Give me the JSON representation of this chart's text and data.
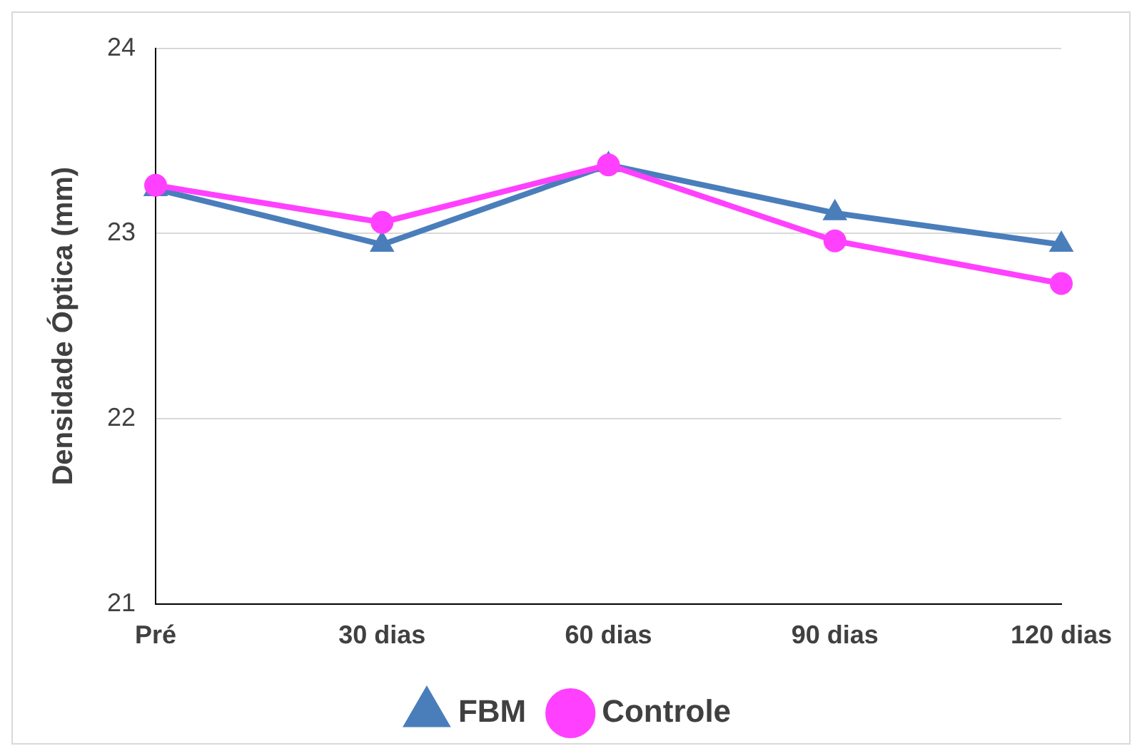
{
  "chart_data": {
    "type": "line",
    "ylabel": "Densidade Óptica (mm)",
    "categories": [
      "Pré",
      "30 dias",
      "60 dias",
      "90 dias",
      "120 dias"
    ],
    "series": [
      {
        "name": "FBM",
        "color": "#4a7ebb",
        "marker": "triangle",
        "values": [
          23.24,
          22.94,
          23.37,
          23.11,
          22.94
        ]
      },
      {
        "name": "Controle",
        "color": "#ff40ff",
        "marker": "circle",
        "values": [
          23.26,
          23.06,
          23.37,
          22.96,
          22.73
        ]
      }
    ],
    "ylim": [
      21,
      24
    ],
    "yticks": [
      21,
      22,
      23,
      24
    ],
    "grid": "y",
    "legend": "bottom"
  }
}
